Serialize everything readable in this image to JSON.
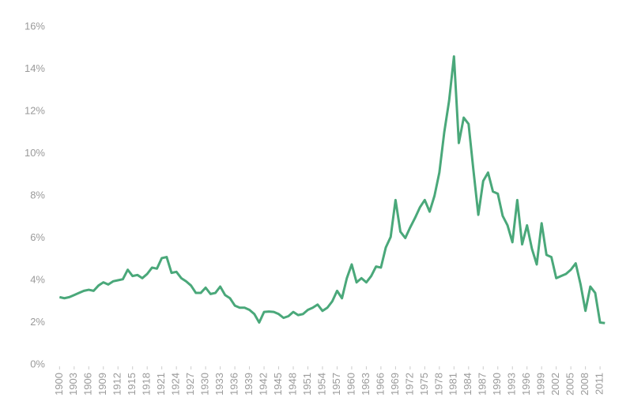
{
  "chart_data": {
    "type": "line",
    "x": [
      1900,
      1901,
      1902,
      1903,
      1904,
      1905,
      1906,
      1907,
      1908,
      1909,
      1910,
      1911,
      1912,
      1913,
      1914,
      1915,
      1916,
      1917,
      1918,
      1919,
      1920,
      1921,
      1922,
      1923,
      1924,
      1925,
      1926,
      1927,
      1928,
      1929,
      1930,
      1931,
      1932,
      1933,
      1934,
      1935,
      1936,
      1937,
      1938,
      1939,
      1940,
      1941,
      1942,
      1943,
      1944,
      1945,
      1946,
      1947,
      1948,
      1949,
      1950,
      1951,
      1952,
      1953,
      1954,
      1955,
      1956,
      1957,
      1958,
      1959,
      1960,
      1961,
      1962,
      1963,
      1964,
      1965,
      1966,
      1967,
      1968,
      1969,
      1970,
      1971,
      1972,
      1973,
      1974,
      1975,
      1976,
      1977,
      1978,
      1979,
      1980,
      1981,
      1982,
      1983,
      1984,
      1985,
      1986,
      1987,
      1988,
      1989,
      1990,
      1991,
      1992,
      1993,
      1994,
      1995,
      1996,
      1997,
      1998,
      1999,
      2000,
      2001,
      2002,
      2003,
      2004,
      2005,
      2006,
      2007,
      2008,
      2009,
      2010,
      2011,
      2012
    ],
    "series": [
      {
        "color": "#4aa87a",
        "values": [
          3.2,
          3.15,
          3.2,
          3.3,
          3.4,
          3.5,
          3.55,
          3.5,
          3.75,
          3.9,
          3.8,
          3.95,
          4.0,
          4.05,
          4.5,
          4.2,
          4.25,
          4.1,
          4.3,
          4.6,
          4.55,
          5.05,
          5.1,
          4.35,
          4.4,
          4.1,
          3.95,
          3.75,
          3.4,
          3.4,
          3.65,
          3.35,
          3.4,
          3.7,
          3.3,
          3.15,
          2.8,
          2.7,
          2.7,
          2.6,
          2.4,
          2.0,
          2.5,
          2.52,
          2.5,
          2.4,
          2.22,
          2.3,
          2.5,
          2.35,
          2.4,
          2.6,
          2.7,
          2.85,
          2.55,
          2.7,
          3.0,
          3.5,
          3.15,
          4.1,
          4.75,
          3.9,
          4.1,
          3.9,
          4.2,
          4.65,
          4.6,
          5.55,
          6.05,
          7.8,
          6.3,
          6.0,
          6.5,
          6.95,
          7.45,
          7.8,
          7.25,
          8.0,
          9.1,
          11.0,
          12.5,
          14.6,
          10.5,
          11.7,
          11.4,
          9.2,
          7.1,
          8.7,
          9.1,
          8.2,
          8.1,
          7.05,
          6.6,
          5.8,
          7.8,
          5.7,
          6.6,
          5.5,
          4.75,
          6.7,
          5.2,
          5.1,
          4.1,
          4.2,
          4.3,
          4.5,
          4.8,
          3.8,
          2.55,
          3.7,
          3.4,
          2.0,
          1.97
        ]
      }
    ],
    "xlim": [
      1898,
      2014
    ],
    "xticks": [
      1900,
      1903,
      1906,
      1909,
      1912,
      1915,
      1918,
      1921,
      1924,
      1927,
      1930,
      1933,
      1936,
      1939,
      1942,
      1945,
      1948,
      1951,
      1954,
      1957,
      1960,
      1963,
      1966,
      1969,
      1972,
      1975,
      1978,
      1981,
      1984,
      1987,
      1990,
      1993,
      1996,
      1999,
      2002,
      2005,
      2008,
      2011
    ],
    "ylim": [
      0,
      16
    ],
    "yticks": [
      {
        "value": 0,
        "label": "0%"
      },
      {
        "value": 2,
        "label": "2%"
      },
      {
        "value": 4,
        "label": "4%"
      },
      {
        "value": 6,
        "label": "6%"
      },
      {
        "value": 8,
        "label": "8%"
      },
      {
        "value": 10,
        "label": "10%"
      },
      {
        "value": 12,
        "label": "12%"
      },
      {
        "value": 14,
        "label": "14%"
      },
      {
        "value": 16,
        "label": "16%"
      }
    ]
  }
}
